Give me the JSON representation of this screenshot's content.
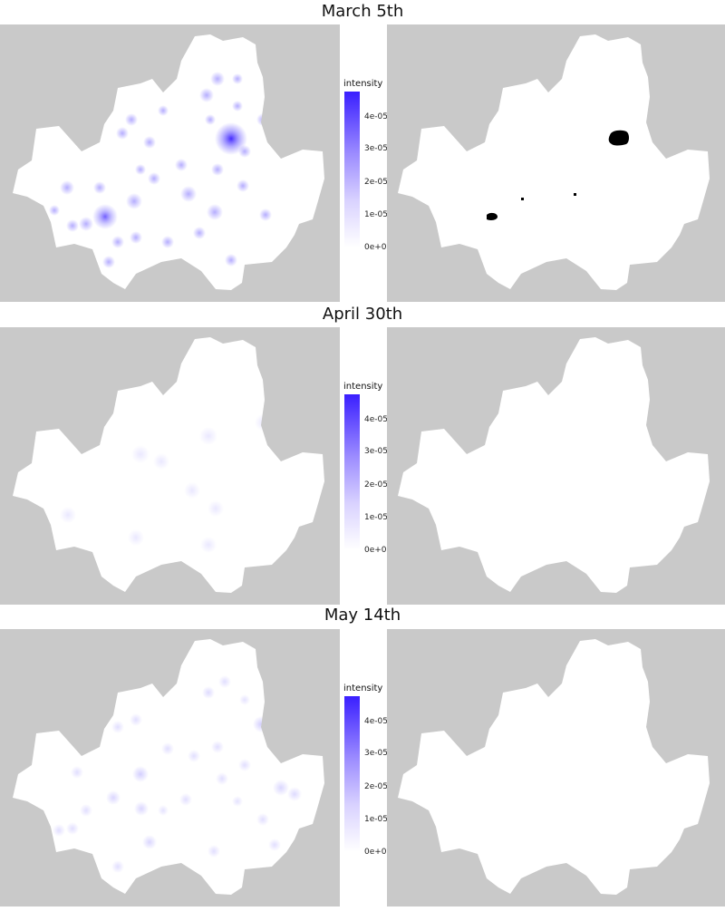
{
  "colors": {
    "background": "#c9c9c9",
    "region": "#ffffff",
    "high": "#3a1fff",
    "hotspot": "#000000"
  },
  "legend": {
    "title": "intensity",
    "ticks": [
      "4e-05",
      "3e-05",
      "2e-05",
      "1e-05",
      "0e+00"
    ]
  },
  "panels": [
    {
      "title": "March 5th"
    },
    {
      "title": "April 30th"
    },
    {
      "title": "May 14th"
    }
  ]
}
